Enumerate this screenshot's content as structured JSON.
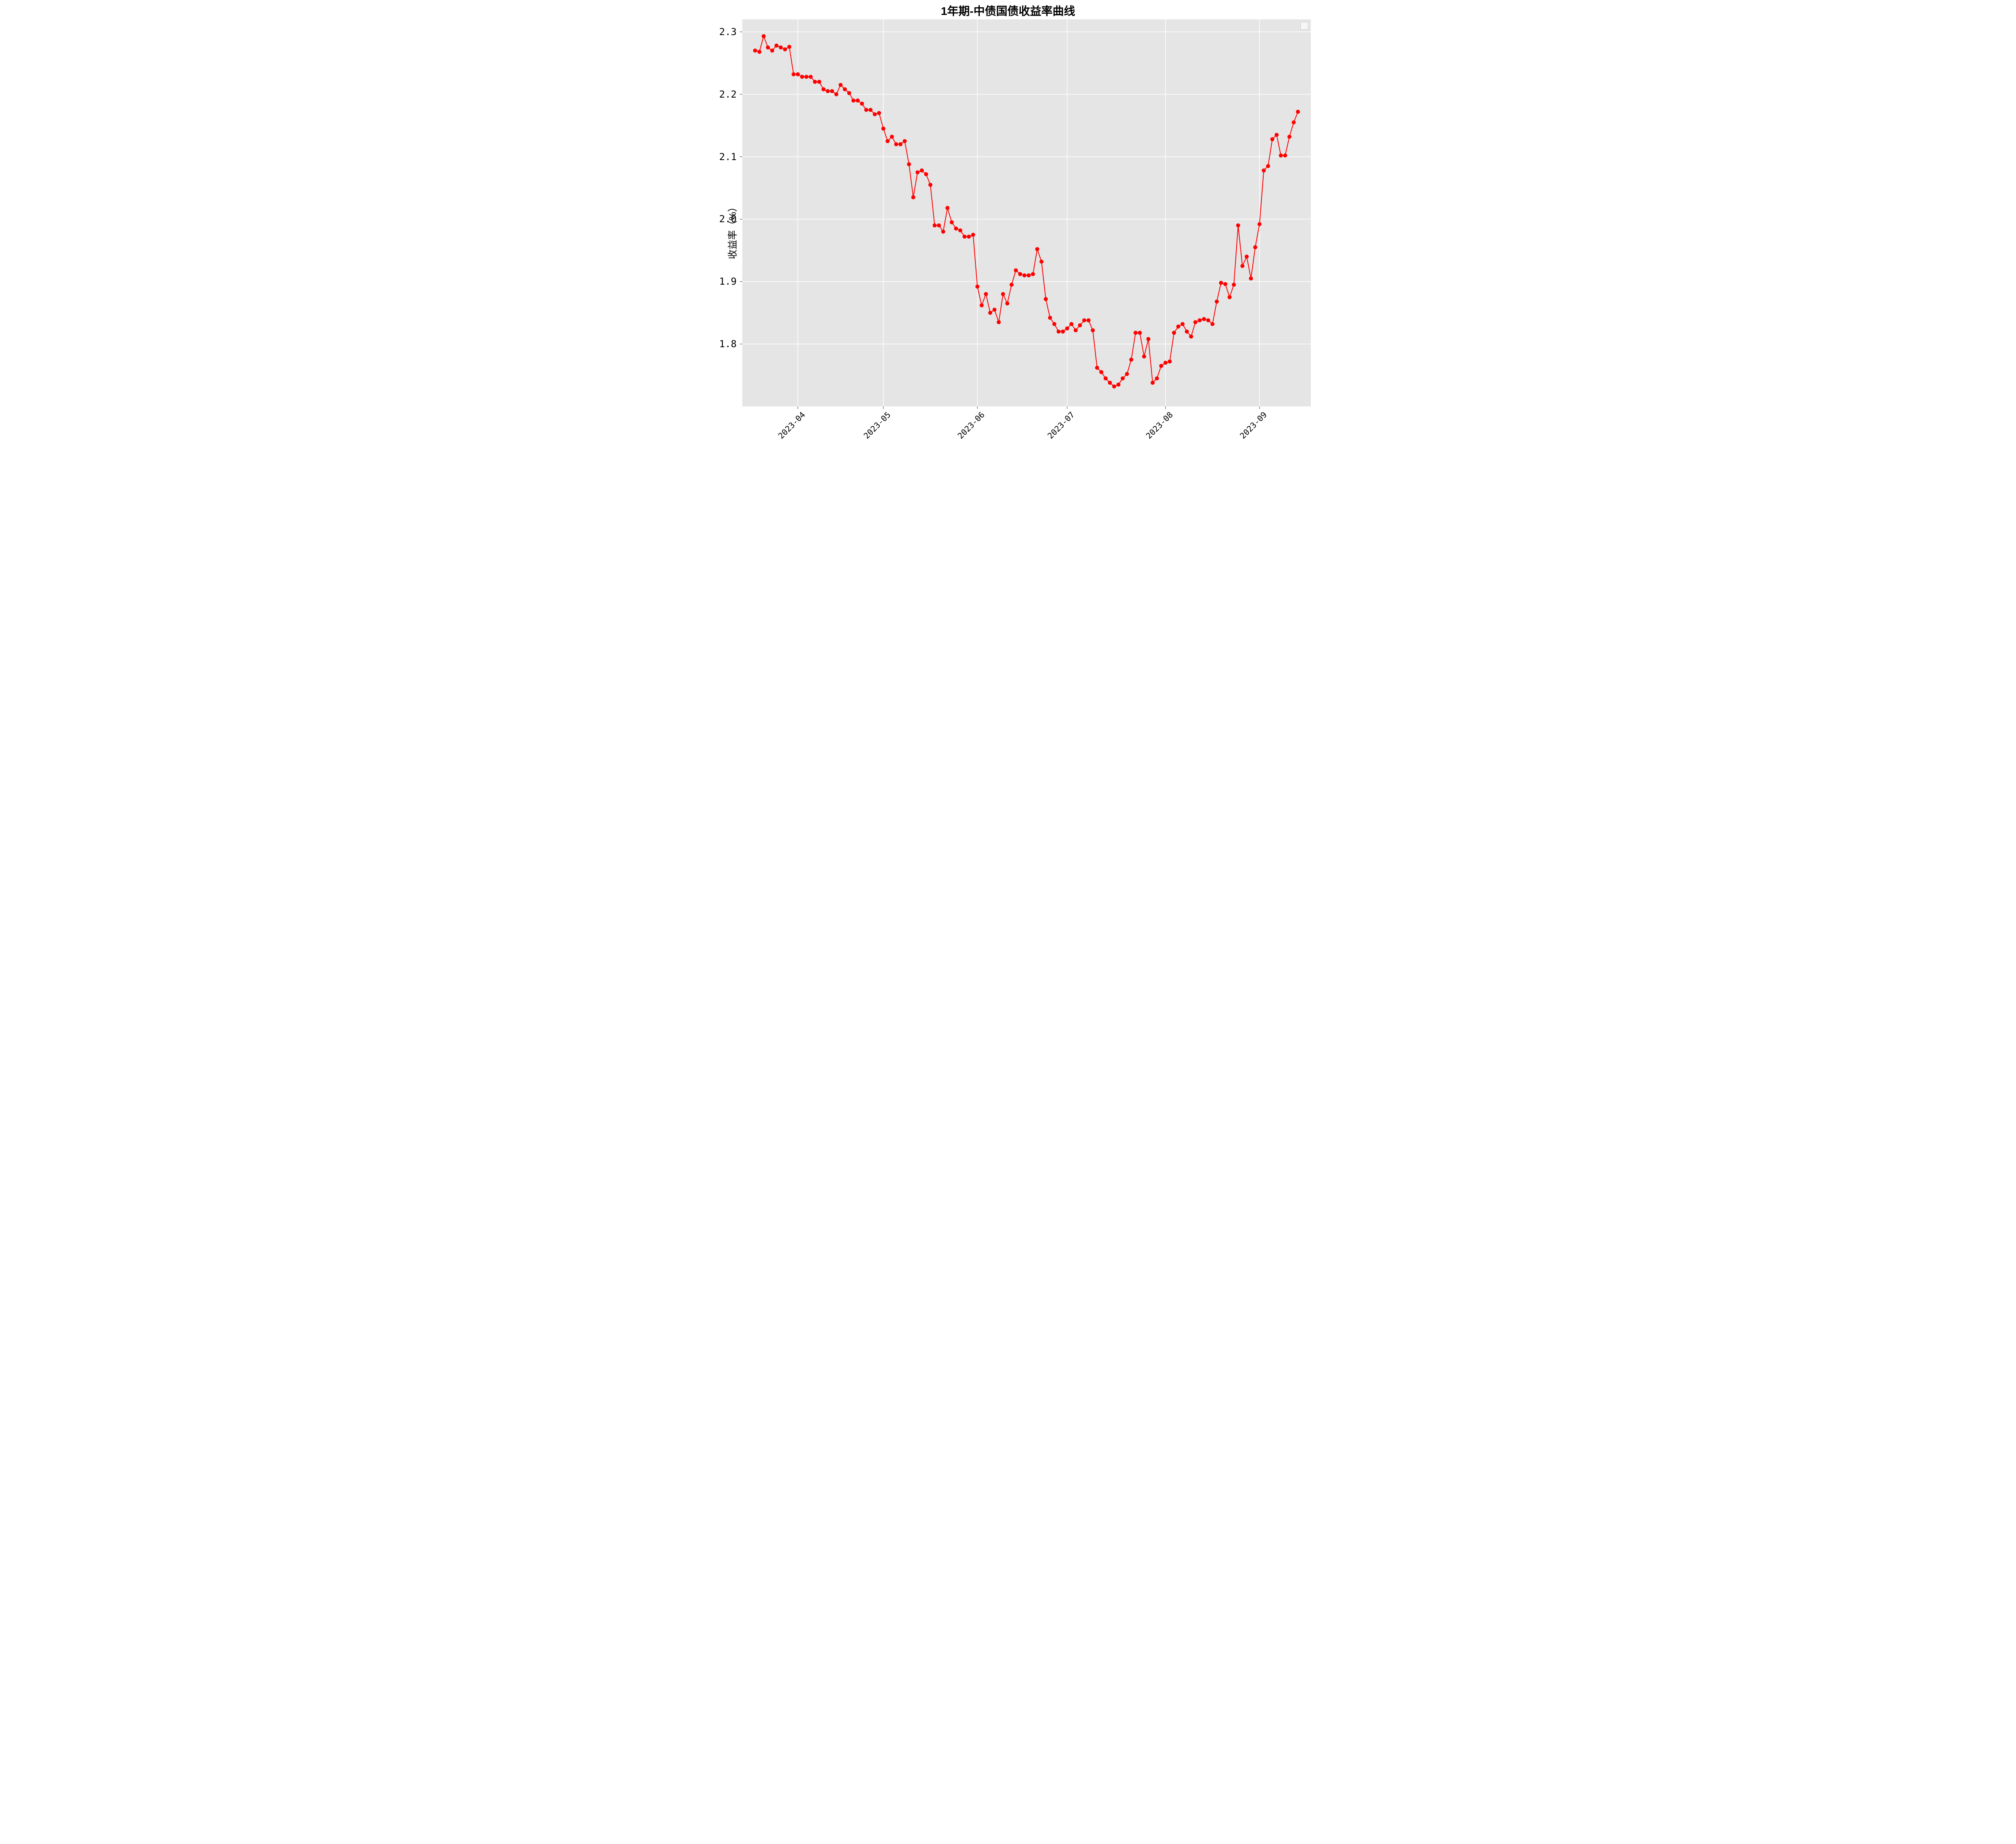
{
  "chart": {
    "type": "line",
    "title": "1年期-中债国债收益率曲线",
    "title_fontsize": 28,
    "ylabel": "收益率（%）",
    "ylabel_fontsize": 24,
    "background_color": "#ffffff",
    "panel_color": "#e5e5e5",
    "grid_color": "#ffffff",
    "grid_linewidth": 1.5,
    "series_color": "#ff0000",
    "marker_color": "#ff0000",
    "marker_style": "circle",
    "marker_size": 5,
    "line_width": 2,
    "tick_fontsize_x": 20,
    "tick_fontsize_y": 24,
    "xtick_rotation_deg": -45,
    "xtick_font": "monospace",
    "ytick_font": "monospace",
    "ylim": [
      1.7,
      2.32
    ],
    "yticks": [
      1.8,
      1.9,
      2.0,
      2.1,
      2.2,
      2.3
    ],
    "ytick_labels": [
      "1.8",
      "1.9",
      "2.0",
      "2.1",
      "2.2",
      "2.3"
    ],
    "xlim_index": [
      -3,
      130
    ],
    "xticks_index": [
      10,
      30,
      52,
      73,
      96,
      118
    ],
    "xtick_labels": [
      "2023-04",
      "2023-05",
      "2023-06",
      "2023-07",
      "2023-08",
      "2023-09"
    ],
    "x_index": [
      0,
      1,
      2,
      3,
      4,
      5,
      6,
      7,
      8,
      9,
      10,
      11,
      12,
      13,
      14,
      15,
      16,
      17,
      18,
      19,
      20,
      21,
      22,
      23,
      24,
      25,
      26,
      27,
      28,
      29,
      30,
      31,
      32,
      33,
      34,
      35,
      36,
      37,
      38,
      39,
      40,
      41,
      42,
      43,
      44,
      45,
      46,
      47,
      48,
      49,
      50,
      51,
      52,
      53,
      54,
      55,
      56,
      57,
      58,
      59,
      60,
      61,
      62,
      63,
      64,
      65,
      66,
      67,
      68,
      69,
      70,
      71,
      72,
      73,
      74,
      75,
      76,
      77,
      78,
      79,
      80,
      81,
      82,
      83,
      84,
      85,
      86,
      87,
      88,
      89,
      90,
      91,
      92,
      93,
      94,
      95,
      96,
      97,
      98,
      99,
      100,
      101,
      102,
      103,
      104,
      105,
      106,
      107,
      108,
      109,
      110,
      111,
      112,
      113,
      114,
      115,
      116,
      117,
      118,
      119,
      120,
      121,
      122,
      123,
      124,
      125,
      126,
      127
    ],
    "y_values": [
      2.27,
      2.268,
      2.293,
      2.275,
      2.27,
      2.278,
      2.275,
      2.272,
      2.276,
      2.232,
      2.232,
      2.228,
      2.228,
      2.228,
      2.22,
      2.22,
      2.208,
      2.205,
      2.205,
      2.2,
      2.215,
      2.208,
      2.202,
      2.19,
      2.19,
      2.185,
      2.175,
      2.175,
      2.168,
      2.17,
      2.145,
      2.125,
      2.132,
      2.12,
      2.12,
      2.125,
      2.088,
      2.035,
      2.075,
      2.078,
      2.072,
      2.055,
      1.99,
      1.99,
      1.98,
      2.018,
      1.995,
      1.985,
      1.982,
      1.972,
      1.972,
      1.975,
      1.892,
      1.862,
      1.88,
      1.85,
      1.855,
      1.835,
      1.88,
      1.865,
      1.895,
      1.918,
      1.912,
      1.91,
      1.91,
      1.912,
      1.952,
      1.932,
      1.872,
      1.842,
      1.832,
      1.82,
      1.82,
      1.825,
      1.832,
      1.822,
      1.83,
      1.838,
      1.838,
      1.822,
      1.762,
      1.755,
      1.745,
      1.738,
      1.732,
      1.735,
      1.745,
      1.752,
      1.775,
      1.818,
      1.818,
      1.78,
      1.808,
      1.738,
      1.745,
      1.765,
      1.77,
      1.772,
      1.818,
      1.828,
      1.832,
      1.82,
      1.812,
      1.835,
      1.838,
      1.84,
      1.838,
      1.832,
      1.868,
      1.898,
      1.896,
      1.875,
      1.895,
      1.99,
      1.925,
      1.94,
      1.905,
      1.955,
      1.992,
      2.078,
      2.085,
      2.128,
      2.135,
      2.102,
      2.102,
      2.132,
      2.155,
      2.172
    ],
    "legend": {
      "visible": true,
      "box_only": true
    }
  }
}
